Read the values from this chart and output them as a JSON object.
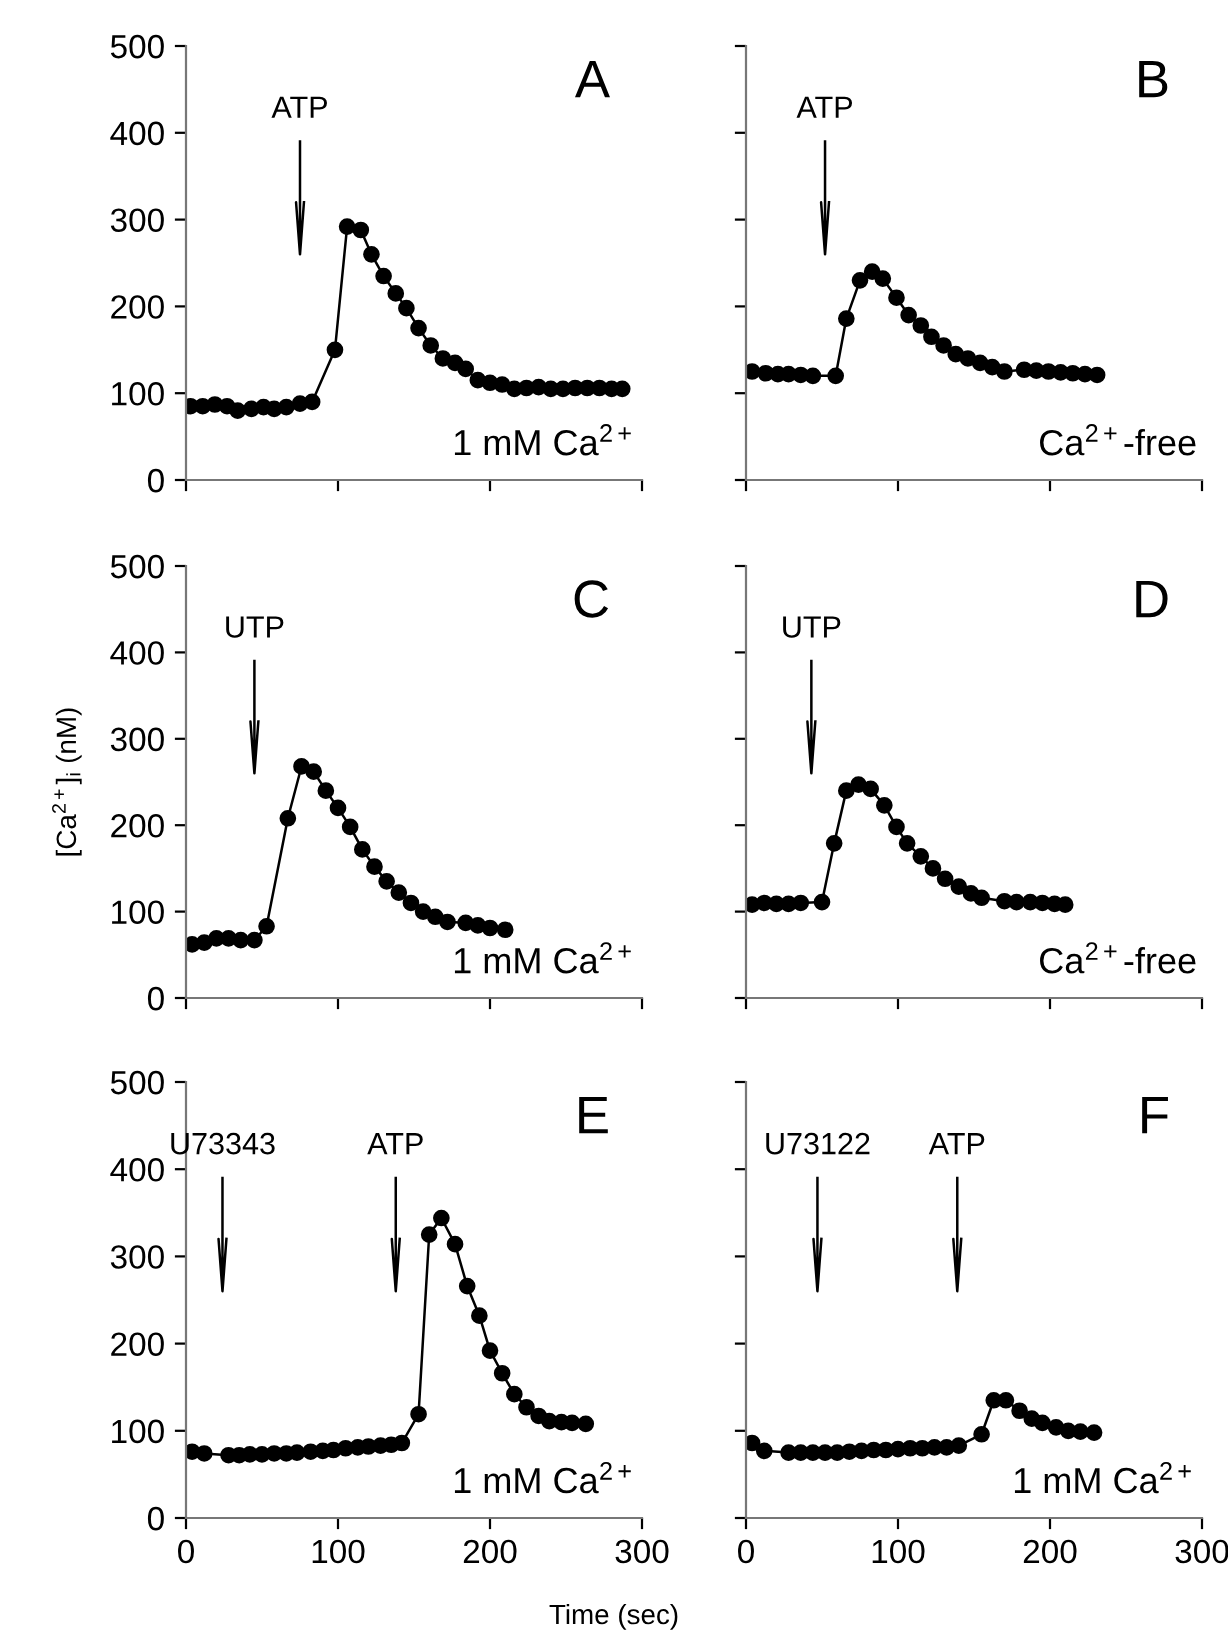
{
  "chart_data": [
    {
      "type": "line",
      "title": "A",
      "xlim": [
        0,
        300
      ],
      "ylim": [
        0,
        500
      ],
      "xticks": [
        0,
        100,
        200,
        300
      ],
      "yticks": [
        0,
        100,
        200,
        300,
        400,
        500
      ],
      "tick_labels": "y",
      "marker": "circle",
      "line_style": "solid",
      "grid": false,
      "ref_lines": [
        {
          "axis": "x",
          "value": 75,
          "label": "ATP"
        }
      ],
      "annotations": [
        "1 mM Ca$^{2+}$"
      ],
      "series": [
        {
          "color": "#000000",
          "x": [
            3,
            11,
            19,
            27,
            34,
            43,
            51,
            58,
            66,
            75,
            83,
            98,
            106,
            115,
            122,
            130,
            138,
            145,
            153,
            161,
            169,
            177,
            184,
            192,
            200,
            208,
            216,
            224,
            232,
            240,
            248,
            256,
            264,
            272,
            280,
            287
          ],
          "values": [
            85,
            85,
            87,
            85,
            80,
            82,
            84,
            82,
            84,
            88,
            90,
            150,
            292,
            288,
            260,
            235,
            215,
            198,
            175,
            155,
            140,
            135,
            128,
            115,
            112,
            110,
            105,
            106,
            107,
            105,
            105,
            106,
            106,
            106,
            105,
            105
          ]
        }
      ]
    },
    {
      "type": "line",
      "title": "B",
      "xlim": [
        0,
        300
      ],
      "ylim": [
        0,
        500
      ],
      "xticks": [
        0,
        100,
        200,
        300
      ],
      "yticks": [
        0,
        100,
        200,
        300,
        400,
        500
      ],
      "tick_labels": false,
      "marker": "circle",
      "line_style": "solid",
      "grid": false,
      "ref_lines": [
        {
          "axis": "x",
          "value": 52,
          "label": "ATP"
        }
      ],
      "annotations": [
        "Ca$^{2+}$-free"
      ],
      "series": [
        {
          "color": "#000000",
          "x": [
            4,
            13,
            21,
            28,
            36,
            44,
            59,
            66,
            75,
            83,
            90,
            99,
            107,
            115,
            122,
            130,
            138,
            146,
            154,
            162,
            170,
            183,
            191,
            199,
            207,
            215,
            223,
            231
          ],
          "values": [
            125,
            123,
            122,
            122,
            121,
            120,
            120,
            186,
            230,
            240,
            232,
            210,
            190,
            178,
            165,
            155,
            145,
            140,
            135,
            130,
            125,
            127,
            126,
            125,
            124,
            123,
            122,
            121
          ]
        }
      ]
    },
    {
      "type": "line",
      "title": "C",
      "ylabel": "[Ca$^{2+}$]$_{i}$ (nM)",
      "xlim": [
        0,
        300
      ],
      "ylim": [
        0,
        500
      ],
      "xticks": [
        0,
        100,
        200,
        300
      ],
      "yticks": [
        0,
        100,
        200,
        300,
        400,
        500
      ],
      "tick_labels": "y",
      "marker": "circle",
      "line_style": "solid",
      "grid": false,
      "ref_lines": [
        {
          "axis": "x",
          "value": 45,
          "label": "UTP"
        }
      ],
      "annotations": [
        "1 mM Ca$^{2+}$"
      ],
      "series": [
        {
          "color": "#000000",
          "x": [
            4,
            12,
            20,
            28,
            36,
            45,
            53,
            67,
            76,
            84,
            92,
            100,
            108,
            116,
            124,
            132,
            140,
            148,
            156,
            164,
            172,
            184,
            192,
            200,
            210
          ],
          "values": [
            62,
            64,
            69,
            69,
            67,
            67,
            83,
            208,
            268,
            262,
            240,
            220,
            198,
            172,
            152,
            135,
            122,
            110,
            100,
            94,
            88,
            87,
            84,
            81,
            79
          ]
        }
      ]
    },
    {
      "type": "line",
      "title": "D",
      "xlim": [
        0,
        300
      ],
      "ylim": [
        0,
        500
      ],
      "xticks": [
        0,
        100,
        200,
        300
      ],
      "yticks": [
        0,
        100,
        200,
        300,
        400,
        500
      ],
      "tick_labels": false,
      "marker": "circle",
      "line_style": "solid",
      "grid": false,
      "ref_lines": [
        {
          "axis": "x",
          "value": 43,
          "label": "UTP"
        }
      ],
      "annotations": [
        "Ca$^{2+}$-free"
      ],
      "series": [
        {
          "color": "#000000",
          "x": [
            4,
            12,
            20,
            28,
            36,
            50,
            58,
            66,
            74,
            82,
            91,
            99,
            106,
            115,
            123,
            131,
            140,
            148,
            155,
            170,
            178,
            187,
            195,
            203,
            210
          ],
          "values": [
            108,
            110,
            109,
            109,
            110,
            111,
            179,
            240,
            247,
            242,
            223,
            198,
            179,
            164,
            150,
            138,
            129,
            121,
            116,
            112,
            111,
            111,
            110,
            109,
            108
          ]
        }
      ]
    },
    {
      "type": "line",
      "title": "E",
      "xlabel": "Time (sec)",
      "xlim": [
        0,
        300
      ],
      "ylim": [
        0,
        500
      ],
      "xticks": [
        0,
        100,
        200,
        300
      ],
      "yticks": [
        0,
        100,
        200,
        300,
        400,
        500
      ],
      "marker": "circle",
      "line_style": "solid",
      "grid": false,
      "ref_lines": [
        {
          "axis": "x",
          "value": 24,
          "label": "U73343"
        },
        {
          "axis": "x",
          "value": 138,
          "label": "ATP"
        }
      ],
      "annotations": [
        "1 mM Ca$^{2+}$"
      ],
      "series": [
        {
          "color": "#000000",
          "x": [
            4,
            12,
            28,
            35,
            42,
            50,
            58,
            66,
            73,
            82,
            90,
            97,
            105,
            113,
            120,
            128,
            135,
            142,
            153,
            160,
            168,
            177,
            185,
            193,
            200,
            208,
            216,
            224,
            232,
            239,
            247,
            254,
            263
          ],
          "values": [
            76,
            74,
            72,
            72,
            73,
            73,
            74,
            74,
            75,
            76,
            77,
            78,
            80,
            81,
            82,
            83,
            84,
            86,
            119,
            325,
            344,
            314,
            266,
            232,
            192,
            166,
            142,
            127,
            117,
            111,
            110,
            109,
            108
          ]
        }
      ]
    },
    {
      "type": "line",
      "title": "F",
      "xlim": [
        0,
        300
      ],
      "ylim": [
        0,
        500
      ],
      "xticks": [
        0,
        100,
        200,
        300
      ],
      "yticks": [
        0,
        100,
        200,
        300,
        400,
        500
      ],
      "tick_labels": "x",
      "marker": "circle",
      "line_style": "solid",
      "grid": false,
      "ref_lines": [
        {
          "axis": "x",
          "value": 47,
          "label": "U73122"
        },
        {
          "axis": "x",
          "value": 139,
          "label": "ATP"
        }
      ],
      "annotations": [
        "1 mM Ca$^{2+}$"
      ],
      "series": [
        {
          "color": "#000000",
          "x": [
            4,
            12,
            28,
            36,
            44,
            52,
            60,
            68,
            76,
            84,
            92,
            100,
            108,
            116,
            124,
            132,
            140,
            155,
            163,
            171,
            180,
            188,
            195,
            204,
            212,
            220,
            229
          ],
          "values": [
            86,
            77,
            75,
            75,
            75,
            75,
            75,
            76,
            77,
            78,
            78,
            79,
            80,
            80,
            81,
            81,
            83,
            96,
            135,
            135,
            123,
            114,
            109,
            104,
            100,
            99,
            98
          ]
        }
      ]
    }
  ]
}
